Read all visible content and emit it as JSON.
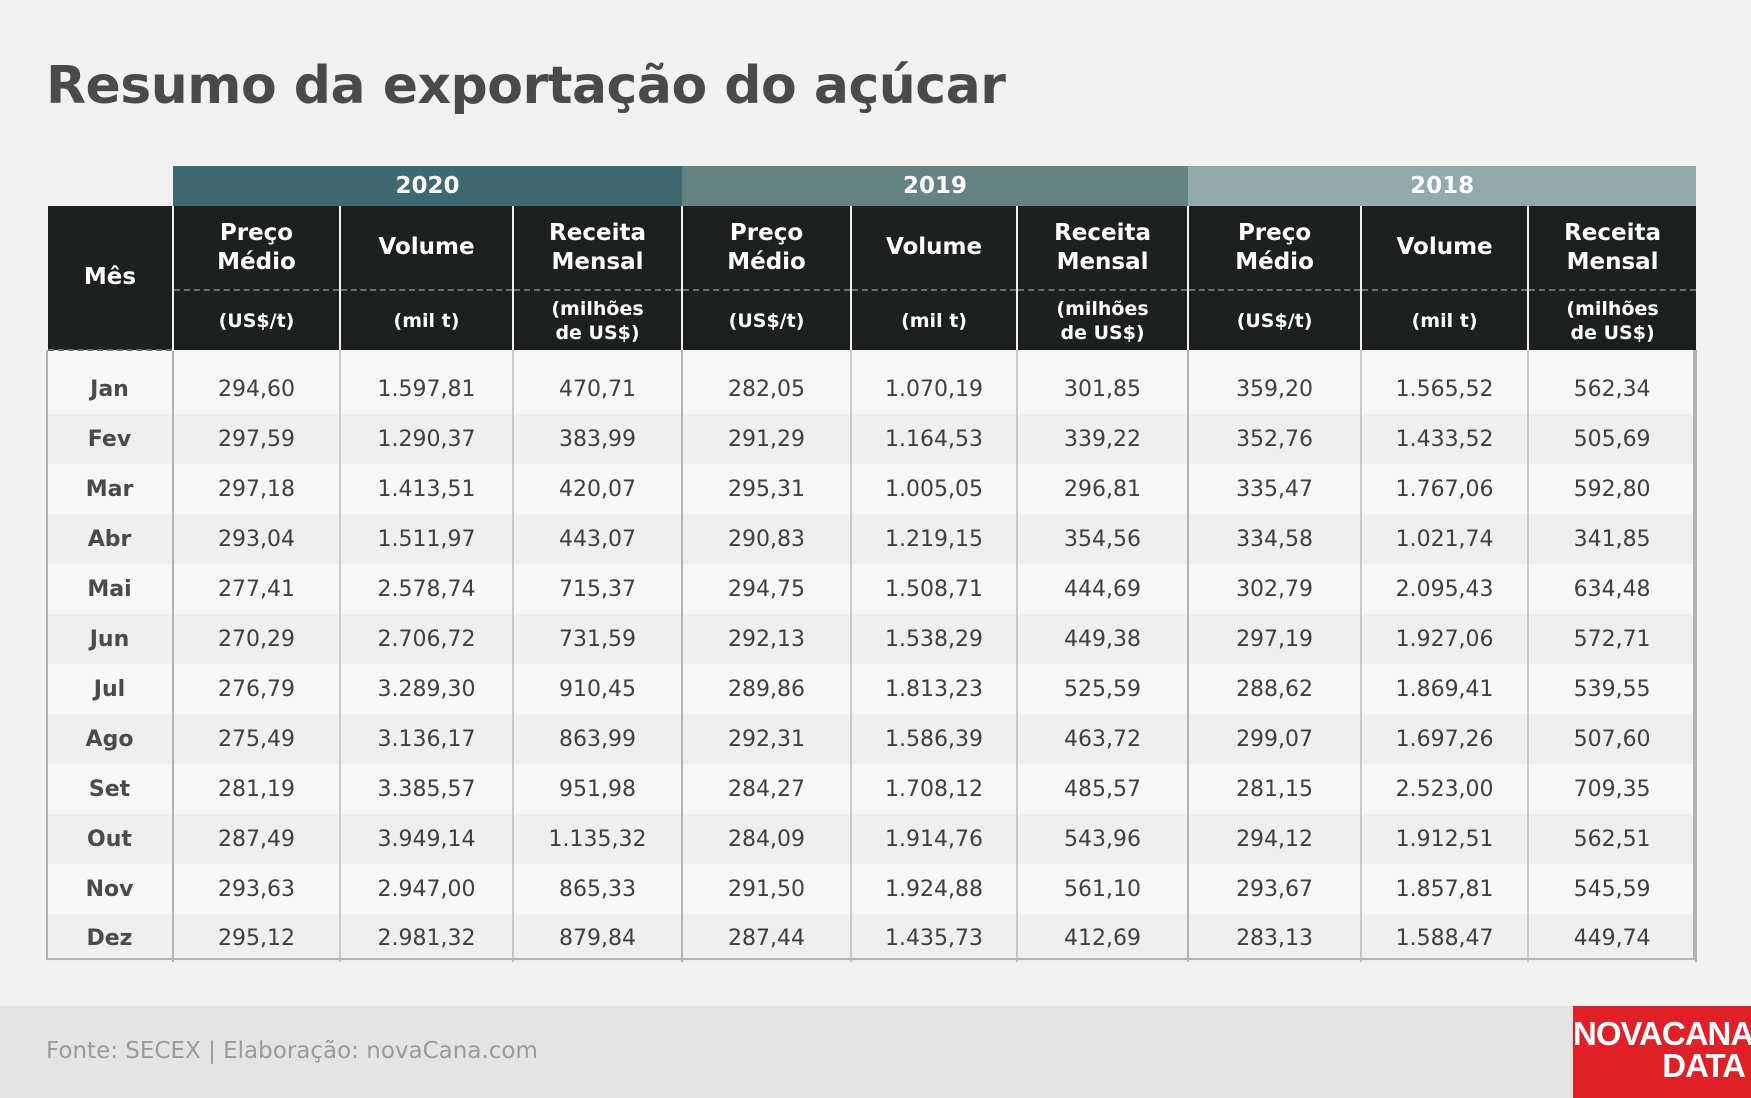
{
  "title": "Resumo da exportação do açúcar",
  "source": "Fonte: SECEX | Elaboração: novaCana.com",
  "logo": {
    "line1": "NOVACANA",
    "line2": "DATA"
  },
  "colors": {
    "y2020": "#3e6a6f",
    "y2019": "#658382",
    "y2018": "#94a9aa",
    "logo": "#e01f26"
  },
  "chart_data": {
    "type": "table",
    "title": "Resumo da exportação do açúcar",
    "month_header": "Mês",
    "years": [
      "2020",
      "2019",
      "2018"
    ],
    "columns": [
      {
        "name_line1": "Preço",
        "name_line2": "Médio",
        "unit_line1": "(US$/t)",
        "unit_line2": ""
      },
      {
        "name_line1": "Volume",
        "name_line2": "",
        "unit_line1": "(mil t)",
        "unit_line2": ""
      },
      {
        "name_line1": "Receita",
        "name_line2": "Mensal",
        "unit_line1": "(milhões",
        "unit_line2": "de US$)"
      }
    ],
    "rows": [
      {
        "month": "Jan",
        "values": [
          "294,60",
          "1.597,81",
          "470,71",
          "282,05",
          "1.070,19",
          "301,85",
          "359,20",
          "1.565,52",
          "562,34"
        ]
      },
      {
        "month": "Fev",
        "values": [
          "297,59",
          "1.290,37",
          "383,99",
          "291,29",
          "1.164,53",
          "339,22",
          "352,76",
          "1.433,52",
          "505,69"
        ]
      },
      {
        "month": "Mar",
        "values": [
          "297,18",
          "1.413,51",
          "420,07",
          "295,31",
          "1.005,05",
          "296,81",
          "335,47",
          "1.767,06",
          "592,80"
        ]
      },
      {
        "month": "Abr",
        "values": [
          "293,04",
          "1.511,97",
          "443,07",
          "290,83",
          "1.219,15",
          "354,56",
          "334,58",
          "1.021,74",
          "341,85"
        ]
      },
      {
        "month": "Mai",
        "values": [
          "277,41",
          "2.578,74",
          "715,37",
          "294,75",
          "1.508,71",
          "444,69",
          "302,79",
          "2.095,43",
          "634,48"
        ]
      },
      {
        "month": "Jun",
        "values": [
          "270,29",
          "2.706,72",
          "731,59",
          "292,13",
          "1.538,29",
          "449,38",
          "297,19",
          "1.927,06",
          "572,71"
        ]
      },
      {
        "month": "Jul",
        "values": [
          "276,79",
          "3.289,30",
          "910,45",
          "289,86",
          "1.813,23",
          "525,59",
          "288,62",
          "1.869,41",
          "539,55"
        ]
      },
      {
        "month": "Ago",
        "values": [
          "275,49",
          "3.136,17",
          "863,99",
          "292,31",
          "1.586,39",
          "463,72",
          "299,07",
          "1.697,26",
          "507,60"
        ]
      },
      {
        "month": "Set",
        "values": [
          "281,19",
          "3.385,57",
          "951,98",
          "284,27",
          "1.708,12",
          "485,57",
          "281,15",
          "2.523,00",
          "709,35"
        ]
      },
      {
        "month": "Out",
        "values": [
          "287,49",
          "3.949,14",
          "1.135,32",
          "284,09",
          "1.914,76",
          "543,96",
          "294,12",
          "1.912,51",
          "562,51"
        ]
      },
      {
        "month": "Nov",
        "values": [
          "293,63",
          "2.947,00",
          "865,33",
          "291,50",
          "1.924,88",
          "561,10",
          "293,67",
          "1.857,81",
          "545,59"
        ]
      },
      {
        "month": "Dez",
        "values": [
          "295,12",
          "2.981,32",
          "879,84",
          "287,44",
          "1.435,73",
          "412,69",
          "283,13",
          "1.588,47",
          "449,74"
        ]
      }
    ]
  }
}
